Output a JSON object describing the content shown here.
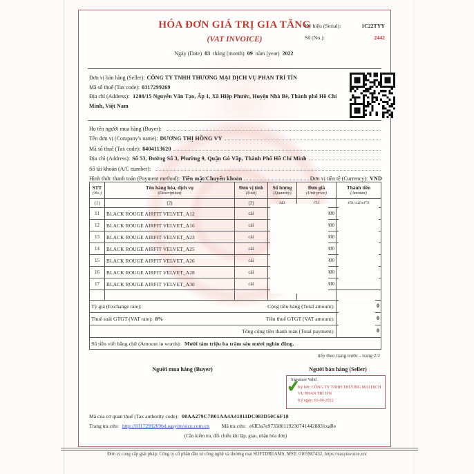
{
  "colors": {
    "accent_red": "#bf392f",
    "number_red": "#c22b23",
    "frame_red": "#b5636c",
    "link_blue": "#2a4fc7",
    "check_green": "#4a9420"
  },
  "header": {
    "title": "HÓA ĐƠN GIÁ TRỊ GIA TĂNG",
    "subtitle": "(VAT INVOICE)",
    "date_prefix": "Ngày (Date)",
    "day": "03",
    "month_label": "tháng (month)",
    "month": "09",
    "year_label": "năm (year)",
    "year": "2022",
    "serial_label": "Ký hiệu (Serial):",
    "serial_value": "1C22TYY",
    "no_label": "Số (No.):",
    "no_value": "2442"
  },
  "seller": {
    "name_label": "Đơn vị bán hàng (Seller):",
    "name": "CÔNG TY TNHH THƯƠNG MẠI DỊCH VỤ PHAN TRÍ TÍN",
    "tax_label": "Mã số thuế (Tax code):",
    "tax": "0317299269",
    "address_label": "Địa chỉ (Address):",
    "address": "1208/15 Nguyễn Văn Tạo, Ấp 1, Xã Hiệp Phước, Huyện Nhà Bè, Thành phố Hồ Chí Minh, Việt Nam"
  },
  "buyer": {
    "buyer_label": "Họ tên người mua hàng (Buyer):",
    "company_label": "Tên đơn vị (Company's name):",
    "company": "DƯƠNG THỊ HỒNG VY",
    "tax_label": "Mã số thuế (Tax code):",
    "tax": "8404113620",
    "address_label": "Địa chỉ (Address):",
    "address": "Số 53, Đường Số 3, Phường 9, Quận Gò Vấp, Thành Phố Hồ Chí Minh",
    "account_label": "Số tài khoản (A/C number):",
    "payment_label": "Hình thức thanh toán (Payment method):",
    "payment": "Tiền mặt/Chuyển khoản",
    "currency_label": "Đơn vị tiền tệ (Currency):",
    "currency": "VND"
  },
  "table": {
    "headers": [
      {
        "main": "STT",
        "sub": "(No.)"
      },
      {
        "main": "Tên hàng hóa, dịch vụ",
        "sub": "(Description)"
      },
      {
        "main": "Đơn vị tính",
        "sub": "(Unit)"
      },
      {
        "main": "Số lượng",
        "sub": "(Quantity)"
      },
      {
        "main": "Đơn giá",
        "sub": "(Unit price)"
      },
      {
        "main": "Thành tiền",
        "sub": "(Amount)"
      }
    ],
    "col_nums": [
      "(1)",
      "(2)",
      "(3)",
      "(4)",
      "(5)",
      "(6)=(4)x(5)"
    ],
    "rows": [
      {
        "no": "11",
        "desc": "BLACK ROUGE AIRFIT VELVET_A12",
        "unit": "cái",
        "price": "800"
      },
      {
        "no": "12",
        "desc": "BLACK ROUGE AIRFIT VELVET_A16",
        "unit": "cái",
        "price": "800"
      },
      {
        "no": "13",
        "desc": "BLACK ROUGE AIRFIT VELVET_A23",
        "unit": "cái",
        "price": "800"
      },
      {
        "no": "14",
        "desc": "BLACK ROUGE AIRFIT VELVET_A25",
        "unit": "cái",
        "price": "800"
      },
      {
        "no": "15",
        "desc": "BLACK ROUGE AIRFIT VELVET_A26",
        "unit": "cái",
        "price": "800"
      },
      {
        "no": "16",
        "desc": "BLACK ROUGE AIRFIT VELVET_A28",
        "unit": "cái",
        "price": "800"
      },
      {
        "no": "17",
        "desc": "BLACK ROUGE AIRFIT VELVET_A30",
        "unit": "cái",
        "price": "800"
      }
    ]
  },
  "totals": {
    "exchange_label": "Tỷ giá (Exchange rate):",
    "subtotal_label": "Cộng tiền hàng (Total amount):",
    "vat_rate_label": "Thuế suất GTGT (VAT rate):",
    "vat_rate": "8%",
    "vat_amount_label": "Tiền thuế GTGT (VAT amount):",
    "total_label": "Tổng cộng tiền thanh toán (Total payment):",
    "amount_fragment": "0",
    "words_label": "Số tiền viết bằng chữ (Amount in words):",
    "words": "Mười tám triệu ba trăm sáu mươi nghìn đồng."
  },
  "signing": {
    "page_note": "tiếp theo trang trước - trang 2/2",
    "buyer_title": "Người mua hàng (Buyer)",
    "seller_title": "Người bán hàng (Seller)",
    "sig_valid": "Signature Valid",
    "sig_by": "Ký bởi: CÔNG TY TNHH THƯƠNG MẠI DỊCH VỤ PHAN TRÍ TÍN",
    "sig_date": "Ký ngày: 03-09-2022"
  },
  "footer": {
    "authority_label": "Mã của cơ quan thuế (Tax authority code):",
    "authority_code": "00AA279C7B01AA4A41811DC983D50C6F18",
    "lookup_label": "Trang tra cứu:",
    "lookup_url": "http://0317299269bd.easyinvoice.com.vn",
    "code_label": "Mã tra cứu:",
    "lookup_code": "e6R3a7e9735801192307414428831xaRe",
    "note": "(Cần kiểm tra, đối chiếu khi lập, giao, nhận hóa đơn)",
    "provider": "Đơn vị cung cấp giải pháp: Công ty cổ phần đầu tư công nghệ và thương mại SOFTDREAMS, MST: 0105987432, https://easyinvoice.vn/"
  }
}
